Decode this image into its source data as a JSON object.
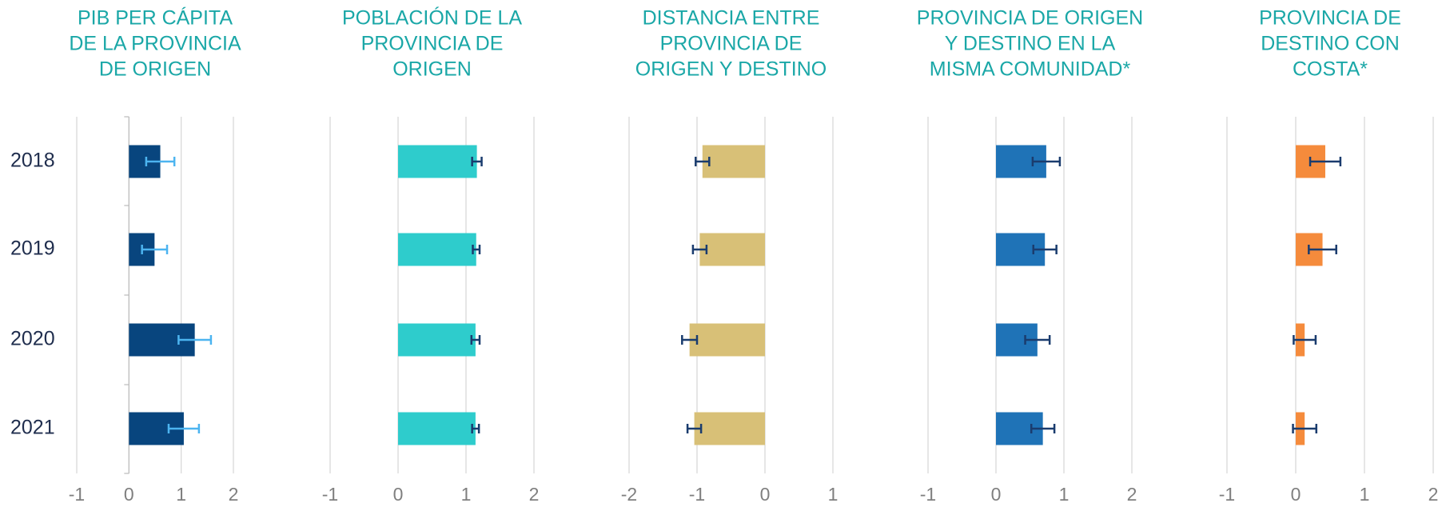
{
  "chart_data": [
    {
      "type": "bar",
      "title": [
        "PIB PER CÁPITA",
        "DE LA PROVINCIA",
        "DE ORIGEN"
      ],
      "categories": [
        "2018",
        "2019",
        "2020",
        "2021"
      ],
      "values": [
        0.6,
        0.49,
        1.26,
        1.05
      ],
      "errors": [
        0.27,
        0.24,
        0.31,
        0.29
      ],
      "color": "#08457e",
      "error_color": "#4cb4f0",
      "xlim": [
        -1,
        2
      ],
      "xticks": [
        -1,
        0,
        1,
        2
      ],
      "grid": true
    },
    {
      "type": "bar",
      "title": [
        "POBLACIÓN DE LA",
        "PROVINCIA DE",
        "ORIGEN"
      ],
      "values": [
        1.16,
        1.15,
        1.14,
        1.14
      ],
      "errors": [
        0.07,
        0.05,
        0.06,
        0.05
      ],
      "color": "#2ecccc",
      "error_color": "#1a3c6e",
      "xlim": [
        -1,
        2
      ],
      "xticks": [
        -1,
        0,
        1,
        2
      ],
      "grid": true
    },
    {
      "type": "bar",
      "title": [
        "DISTANCIA ENTRE",
        "PROVINCIA DE",
        "ORIGEN Y DESTINO"
      ],
      "values": [
        -0.92,
        -0.96,
        -1.11,
        -1.04
      ],
      "errors": [
        0.1,
        0.1,
        0.11,
        0.1
      ],
      "color": "#d8c077",
      "error_color": "#1a3c6e",
      "xlim": [
        -2,
        1
      ],
      "xticks": [
        -2,
        -1,
        0,
        1
      ],
      "grid": true
    },
    {
      "type": "bar",
      "title": [
        "PROVINCIA DE ORIGEN",
        "Y DESTINO EN LA",
        "MISMA COMUNIDAD*"
      ],
      "values": [
        0.74,
        0.72,
        0.61,
        0.69
      ],
      "errors": [
        0.2,
        0.17,
        0.18,
        0.17
      ],
      "color": "#1f73b7",
      "error_color": "#1a3c6e",
      "xlim": [
        -1,
        2
      ],
      "xticks": [
        -1,
        0,
        1,
        2
      ],
      "grid": true
    },
    {
      "type": "bar",
      "title": [
        "PROVINCIA DE",
        "DESTINO CON",
        "COSTA*"
      ],
      "values": [
        0.43,
        0.39,
        0.13,
        0.13
      ],
      "errors": [
        0.22,
        0.2,
        0.16,
        0.17
      ],
      "color": "#f58b3c",
      "error_color": "#1a3c6e",
      "xlim": [
        -1,
        2
      ],
      "xticks": [
        -1,
        0,
        1,
        2
      ],
      "grid": true
    }
  ]
}
